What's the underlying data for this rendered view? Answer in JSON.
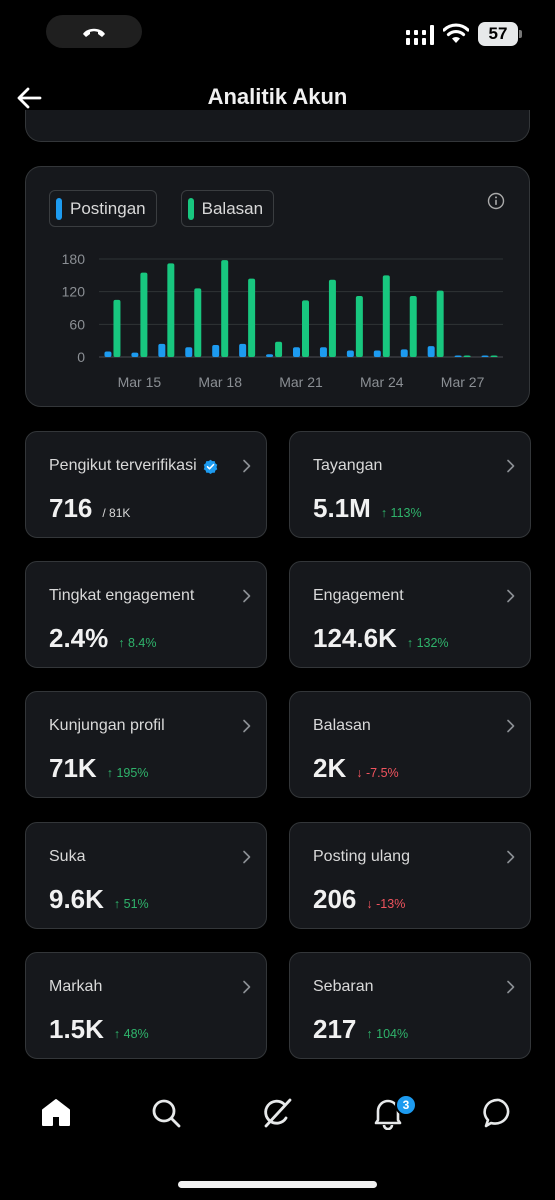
{
  "status_bar": {
    "battery": "57"
  },
  "header": {
    "title": "Analitik Akun"
  },
  "chart_data": {
    "type": "bar",
    "categories": [
      "Mar 14",
      "Mar 15",
      "Mar 16",
      "Mar 17",
      "Mar 18",
      "Mar 19",
      "Mar 20",
      "Mar 21",
      "Mar 22",
      "Mar 23",
      "Mar 24",
      "Mar 25",
      "Mar 26",
      "Mar 27",
      "Mar 28"
    ],
    "x_tick_labels": [
      "Mar 15",
      "Mar 18",
      "Mar 21",
      "Mar 24",
      "Mar 27"
    ],
    "y_ticks": [
      "0",
      "60",
      "120",
      "180"
    ],
    "ylim": [
      0,
      180
    ],
    "series": [
      {
        "name": "Postingan",
        "color": "#1d9bf0",
        "values": [
          10,
          8,
          24,
          18,
          22,
          24,
          5,
          18,
          18,
          12,
          12,
          14,
          20,
          0,
          0
        ]
      },
      {
        "name": "Balasan",
        "color": "#18c77f",
        "values": [
          105,
          155,
          172,
          126,
          178,
          144,
          28,
          104,
          142,
          112,
          150,
          112,
          122,
          0,
          0
        ]
      }
    ],
    "legend": [
      "Postingan",
      "Balasan"
    ],
    "grid": true
  },
  "stats": [
    {
      "label": "Pengikut terverifikasi",
      "value": "716",
      "sub": "/ 81K",
      "delta": "",
      "verified": true
    },
    {
      "label": "Tayangan",
      "value": "5.1M",
      "delta": "113%",
      "dir": "up"
    },
    {
      "label": "Tingkat engagement",
      "value": "2.4%",
      "delta": "8.4%",
      "dir": "up"
    },
    {
      "label": "Engagement",
      "value": "124.6K",
      "delta": "132%",
      "dir": "up"
    },
    {
      "label": "Kunjungan profil",
      "value": "71K",
      "delta": "195%",
      "dir": "up"
    },
    {
      "label": "Balasan",
      "value": "2K",
      "delta": "-7.5%",
      "dir": "down"
    },
    {
      "label": "Suka",
      "value": "9.6K",
      "delta": "51%",
      "dir": "up"
    },
    {
      "label": "Posting ulang",
      "value": "206",
      "delta": "-13%",
      "dir": "down"
    },
    {
      "label": "Markah",
      "value": "1.5K",
      "delta": "48%",
      "dir": "up"
    },
    {
      "label": "Sebaran",
      "value": "217",
      "delta": "104%",
      "dir": "up"
    }
  ],
  "nav": {
    "notifications_badge": "3"
  },
  "colors": {
    "accent": "#1d9bf0",
    "up": "#2fb36b",
    "down": "#f0545e"
  },
  "icons": [
    "phone-icon",
    "signal-icon",
    "wifi-icon",
    "back-arrow-icon",
    "info-icon",
    "verified-badge-icon",
    "chevron-right-icon",
    "home-icon",
    "search-icon",
    "grok-icon",
    "bell-icon",
    "messages-icon"
  ]
}
